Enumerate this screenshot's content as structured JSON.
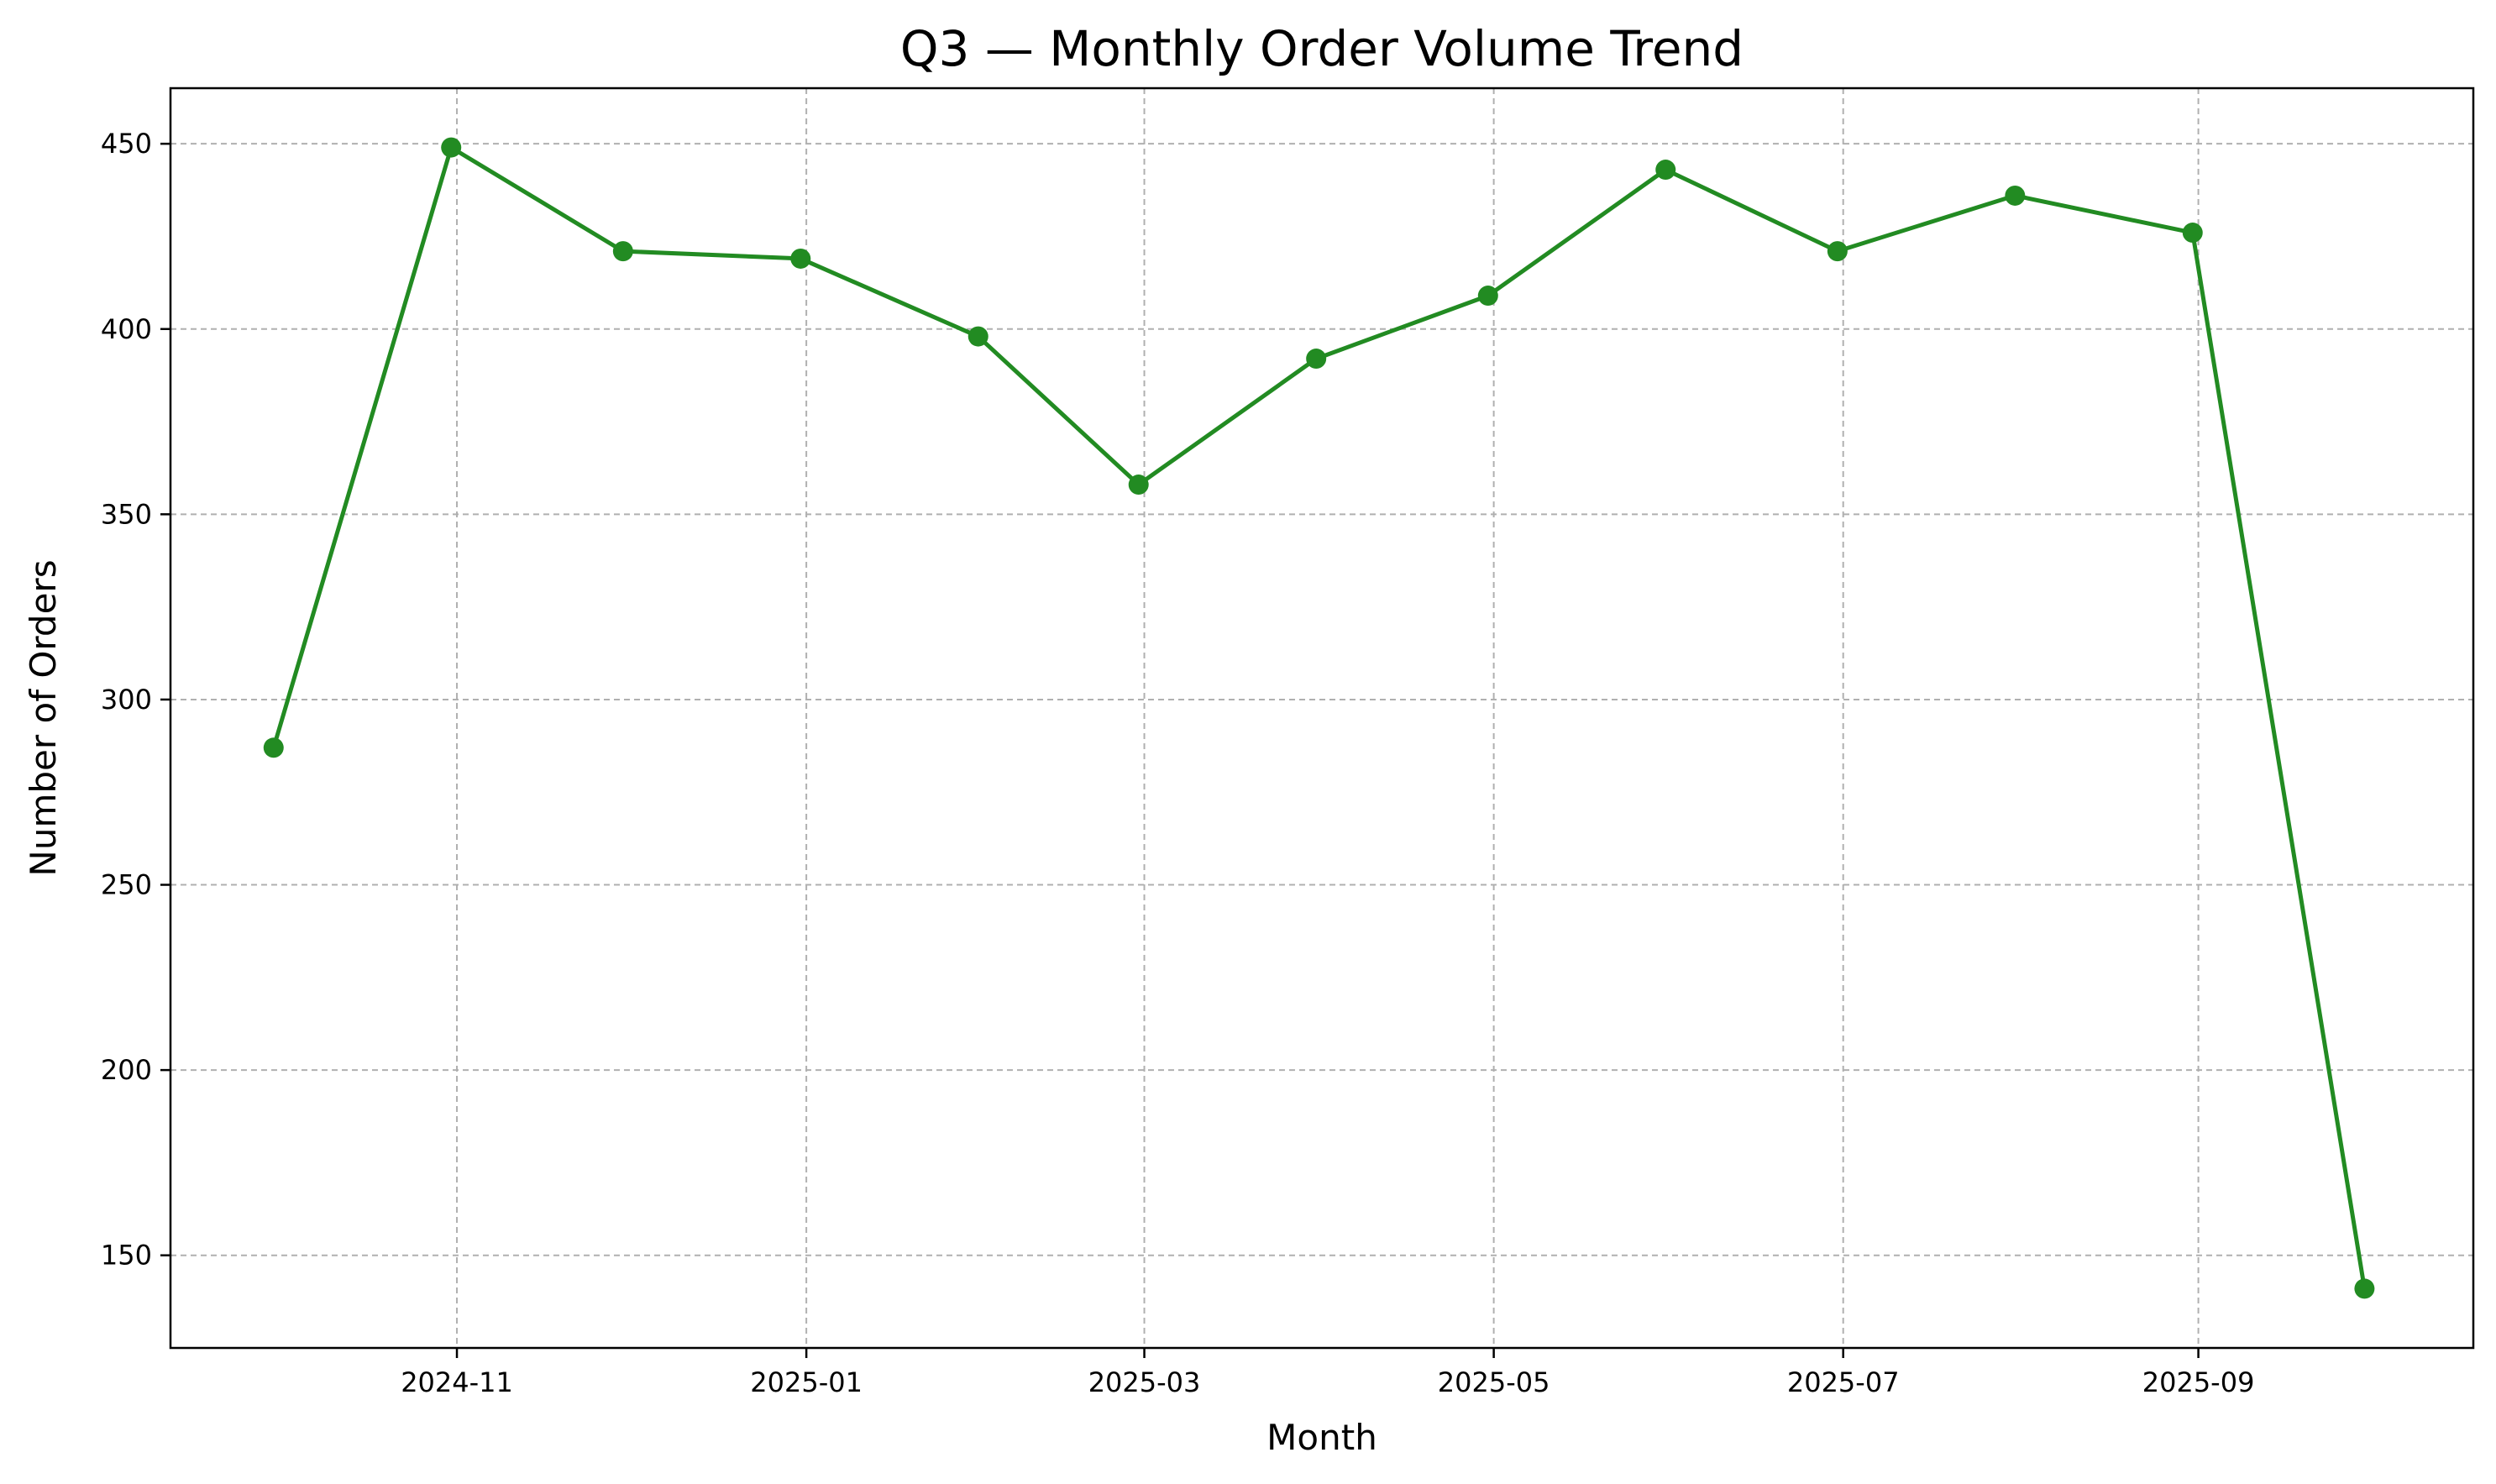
{
  "chart_data": {
    "type": "line",
    "title": "Q3 — Monthly Order Volume Trend",
    "xlabel": "Month",
    "ylabel": "Number of Orders",
    "x_ticks": [
      "2024-11",
      "2025-01",
      "2025-03",
      "2025-05",
      "2025-07",
      "2025-09"
    ],
    "y_ticks": [
      150,
      200,
      250,
      300,
      350,
      400,
      450
    ],
    "xlim": [
      "2024-09-12",
      "2025-10-19"
    ],
    "ylim": [
      125,
      465
    ],
    "grid": true,
    "colors": {
      "line": "#228b22",
      "marker": "#228b22",
      "grid": "#b0b0b0"
    },
    "series": [
      {
        "x": [
          "2024-09-30",
          "2024-10-31",
          "2024-11-30",
          "2024-12-31",
          "2025-01-31",
          "2025-02-28",
          "2025-03-31",
          "2025-04-30",
          "2025-05-31",
          "2025-06-30",
          "2025-07-31",
          "2025-08-31",
          "2025-09-30"
        ],
        "values": [
          287,
          449,
          421,
          419,
          398,
          358,
          392,
          409,
          443,
          421,
          436,
          426,
          141
        ]
      }
    ]
  }
}
